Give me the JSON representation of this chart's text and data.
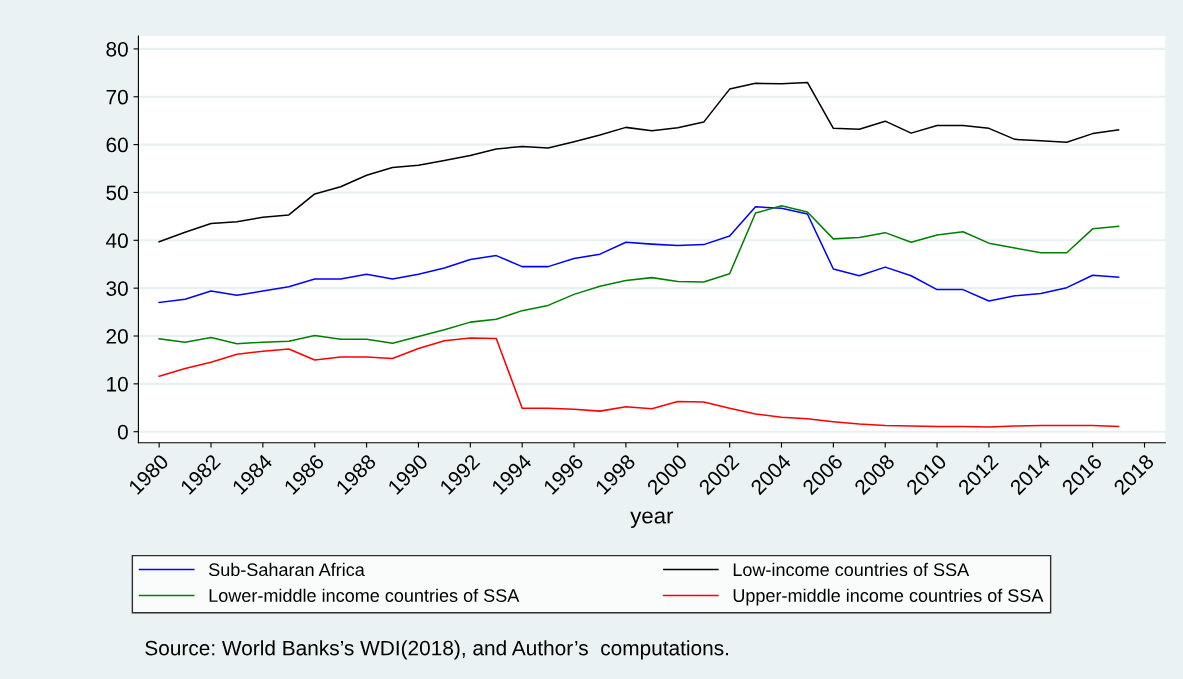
{
  "chart_data": {
    "type": "line",
    "xlabel": "year",
    "x": [
      1980,
      1981,
      1982,
      1983,
      1984,
      1985,
      1986,
      1987,
      1988,
      1989,
      1990,
      1991,
      1992,
      1993,
      1994,
      1995,
      1996,
      1997,
      1998,
      1999,
      2000,
      2001,
      2002,
      2003,
      2004,
      2005,
      2006,
      2007,
      2008,
      2009,
      2010,
      2011,
      2012,
      2013,
      2014,
      2015,
      2016,
      2017
    ],
    "series": [
      {
        "name": "Sub-Saharan Africa",
        "color": "#0000ff",
        "values": [
          27.0,
          27.7,
          29.4,
          28.5,
          29.4,
          30.3,
          31.9,
          31.9,
          32.9,
          31.9,
          32.9,
          34.2,
          36.0,
          36.8,
          34.5,
          34.5,
          36.2,
          37.1,
          39.6,
          39.2,
          38.9,
          39.1,
          40.9,
          47.0,
          46.7,
          45.5,
          34.0,
          32.6,
          34.4,
          32.6,
          29.7,
          29.7,
          27.3,
          28.4,
          28.9,
          30.1,
          32.7,
          32.3
        ]
      },
      {
        "name": "Low-income countries of SSA",
        "color": "#000000",
        "values": [
          39.7,
          41.7,
          43.5,
          43.9,
          44.8,
          45.3,
          49.7,
          51.2,
          53.6,
          55.2,
          55.7,
          56.7,
          57.7,
          59.1,
          59.6,
          59.3,
          60.6,
          62.0,
          63.6,
          62.9,
          63.5,
          64.7,
          71.6,
          72.8,
          72.7,
          73.0,
          63.4,
          63.2,
          64.9,
          62.4,
          64.0,
          64.0,
          63.4,
          61.1,
          60.8,
          60.5,
          62.3,
          63.1
        ]
      },
      {
        "name": "Lower-middle income countries of SSA",
        "color": "#008000",
        "values": [
          19.4,
          18.7,
          19.7,
          18.4,
          18.7,
          18.9,
          20.1,
          19.3,
          19.3,
          18.5,
          19.9,
          21.3,
          22.9,
          23.5,
          25.3,
          26.4,
          28.7,
          30.4,
          31.6,
          32.2,
          31.4,
          31.3,
          33.0,
          45.7,
          47.2,
          45.9,
          40.3,
          40.6,
          41.6,
          39.6,
          41.1,
          41.8,
          39.4,
          38.4,
          37.4,
          37.4,
          42.4,
          42.9
        ]
      },
      {
        "name": "Upper-middle income countries of SSA",
        "color": "#ff0000",
        "values": [
          11.6,
          13.2,
          14.5,
          16.2,
          16.8,
          17.3,
          15.0,
          15.6,
          15.6,
          15.3,
          17.4,
          19.0,
          19.6,
          19.5,
          4.9,
          4.9,
          4.7,
          4.3,
          5.2,
          4.8,
          6.3,
          6.2,
          4.9,
          3.7,
          3.0,
          2.7,
          2.1,
          1.6,
          1.3,
          1.2,
          1.1,
          1.1,
          1.0,
          1.2,
          1.3,
          1.3,
          1.3,
          1.1
        ]
      }
    ],
    "xlim": [
      1979.2,
      2018.8
    ],
    "xticks": [
      1980,
      1982,
      1984,
      1986,
      1988,
      1990,
      1992,
      1994,
      1996,
      1998,
      2000,
      2002,
      2004,
      2006,
      2008,
      2010,
      2012,
      2014,
      2016,
      2018
    ],
    "ylim": [
      -2.3,
      82.7
    ],
    "yticks": [
      0,
      10,
      20,
      30,
      40,
      50,
      60,
      70,
      80
    ],
    "grid": "y",
    "legend": "bottom",
    "marker": "none",
    "line_style": "solid",
    "annotations": [
      "Source: World Banks’s WDI(2018), and Author’s  computations."
    ]
  }
}
